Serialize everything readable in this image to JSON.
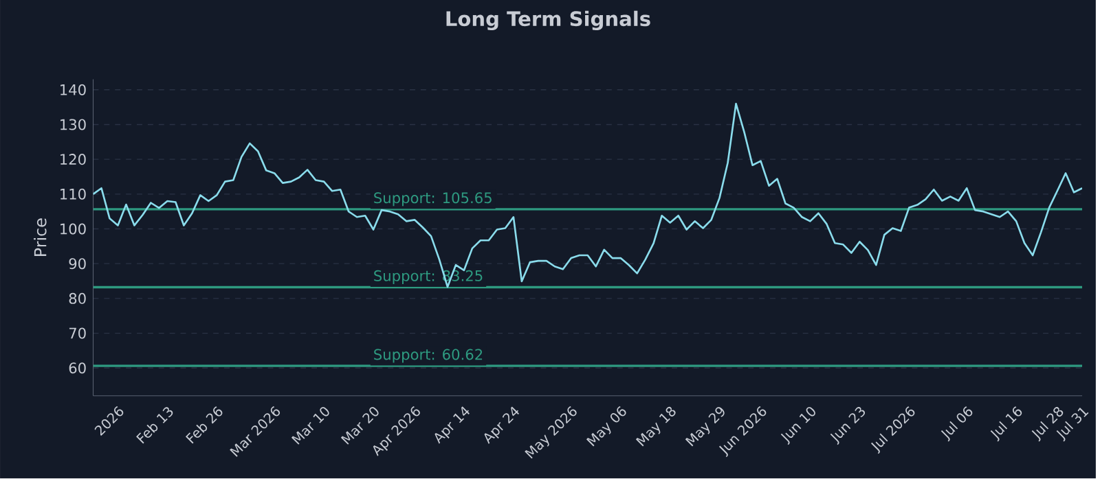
{
  "chart_data": {
    "type": "line",
    "title": "Long Term Signals",
    "ylabel": "Price",
    "categories": [
      null,
      null,
      null,
      "2026",
      null,
      null,
      null,
      null,
      null,
      "Feb 13",
      null,
      null,
      null,
      null,
      null,
      "Feb 26",
      null,
      null,
      null,
      null,
      null,
      null,
      "Mar 2026",
      null,
      null,
      null,
      null,
      null,
      "Mar 10",
      null,
      null,
      null,
      null,
      null,
      "Mar 20",
      null,
      null,
      null,
      null,
      "Apr 2026",
      null,
      null,
      null,
      null,
      null,
      "Apr 14",
      null,
      null,
      null,
      null,
      null,
      "Apr 24",
      null,
      null,
      null,
      null,
      null,
      null,
      "May 2026",
      null,
      null,
      null,
      null,
      null,
      "May 06",
      null,
      null,
      null,
      null,
      null,
      "May 18",
      null,
      null,
      null,
      null,
      null,
      "May 29",
      null,
      null,
      null,
      null,
      "Jun 2026",
      null,
      null,
      null,
      null,
      null,
      "Jun 10",
      null,
      null,
      null,
      null,
      null,
      "Jun 23",
      null,
      null,
      null,
      null,
      null,
      "Jul 2026",
      null,
      null,
      null,
      null,
      null,
      null,
      "Jul 06",
      null,
      null,
      null,
      null,
      null,
      "Jul 16",
      null,
      null,
      null,
      null,
      "Jul 28",
      null,
      null,
      "Jul 31"
    ],
    "series": [
      {
        "color": "#8adcec",
        "values": [
          110,
          111.7,
          103,
          101,
          107,
          101,
          104,
          107.5,
          106,
          108,
          107.7,
          101,
          104.5,
          109.7,
          108,
          109.7,
          113.6,
          114,
          120.7,
          124.6,
          122.3,
          116.8,
          116,
          113.2,
          113.6,
          114.8,
          117,
          114,
          113.6,
          110.9,
          111.3,
          105,
          103.4,
          103.8,
          99.8,
          105.4,
          105,
          104.2,
          102.2,
          102.6,
          100.4,
          97.9,
          91.2,
          83.3,
          89.6,
          88.1,
          94.4,
          96.7,
          96.7,
          99.8,
          100.2,
          103.4,
          84.9,
          90.4,
          90.8,
          90.8,
          89.2,
          88.4,
          91.6,
          92.4,
          92.4,
          89.2,
          94,
          91.6,
          91.6,
          89.6,
          87.2,
          91.2,
          95.9,
          103.8,
          101.8,
          103.8,
          99.8,
          102.2,
          100.2,
          102.6,
          108.9,
          119,
          136,
          127.8,
          118.3,
          119.5,
          112.4,
          114.4,
          107.3,
          106.1,
          103.4,
          102.2,
          104.5,
          101.4,
          95.9,
          95.5,
          93.1,
          96.3,
          93.9,
          89.6,
          98.3,
          100.2,
          99.4,
          106.1,
          106.9,
          108.5,
          111.3,
          108.1,
          109.3,
          108.1,
          111.7,
          105.4,
          105,
          104.2,
          103.4,
          105,
          102.2,
          95.9,
          92.4,
          99,
          106.1,
          111,
          116,
          110.5,
          111.7
        ]
      }
    ],
    "ylim": [
      52,
      143
    ],
    "yticks": [
      60,
      70,
      80,
      90,
      100,
      110,
      120,
      130,
      140
    ],
    "grid": "y",
    "ref_lines": [
      {
        "axis": "y",
        "value": 105.65,
        "label": "Support: 105.65",
        "color": "#2e9a80"
      },
      {
        "axis": "y",
        "value": 83.25,
        "label": "Support: 83.25",
        "color": "#2e9a80"
      },
      {
        "axis": "y",
        "value": 60.62,
        "label": "Support: 60.62",
        "color": "#2e9a80"
      }
    ]
  }
}
